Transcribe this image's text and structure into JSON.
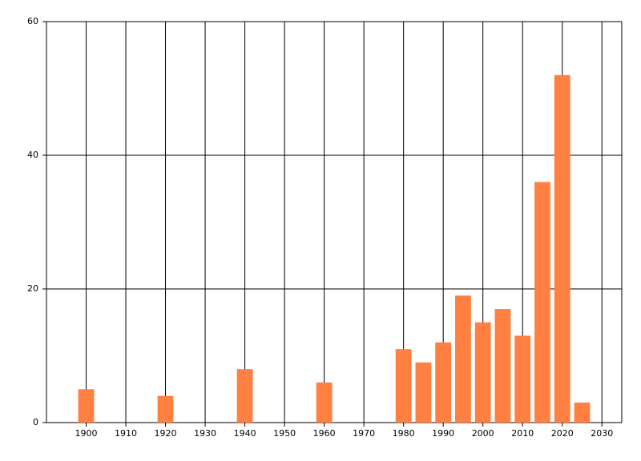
{
  "chart_data": {
    "type": "bar",
    "x": [
      1900,
      1920,
      1940,
      1960,
      1980,
      1985,
      1990,
      1995,
      2000,
      2005,
      2010,
      2015,
      2020,
      2025
    ],
    "values": [
      5,
      4,
      8,
      6,
      11,
      9,
      12,
      19,
      15,
      17,
      13,
      36,
      52,
      3
    ],
    "color": "#ff8040",
    "xlim": [
      1890,
      2035
    ],
    "xticks": [
      1900,
      1910,
      1920,
      1930,
      1940,
      1950,
      1960,
      1970,
      1980,
      1990,
      2000,
      2010,
      2020,
      2030
    ],
    "ylim": [
      0,
      60
    ],
    "yticks": [
      0,
      20,
      40,
      60
    ],
    "grid": true
  }
}
